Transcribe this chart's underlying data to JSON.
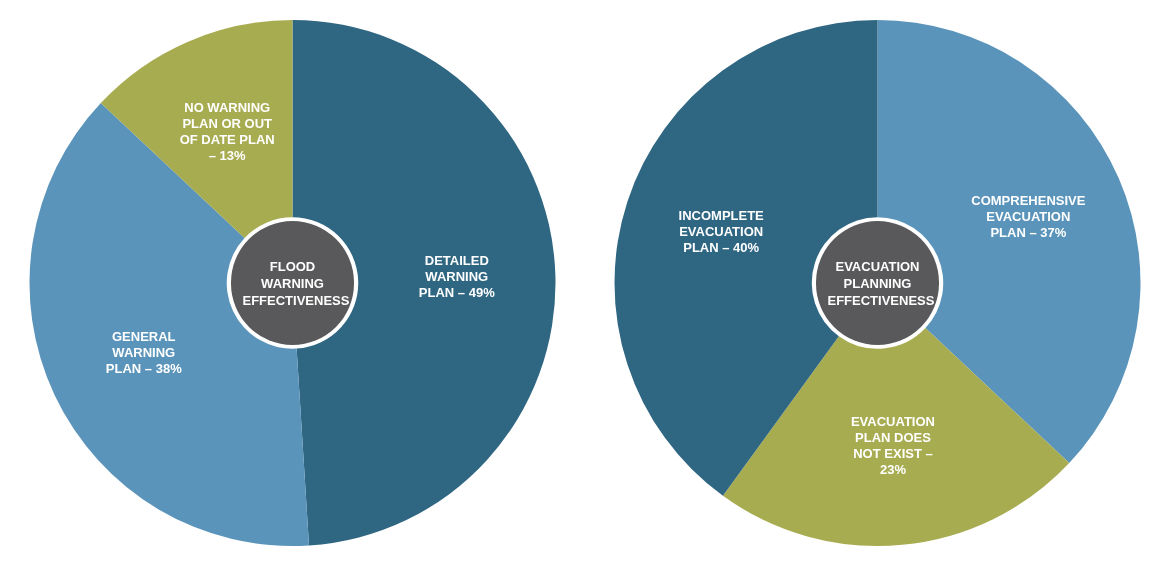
{
  "chart_data": [
    {
      "type": "donut",
      "title": "FLOOD WARNING EFFECTIVENESS",
      "categories": [
        "DETAILED WARNING PLAN – 49%",
        "GENERAL WARNING PLAN – 38%",
        "NO WARNING PLAN OR OUT OF DATE PLAN – 13%"
      ],
      "values": [
        49,
        38,
        13
      ],
      "colors": [
        "#2f6682",
        "#5b94ba",
        "#a8ac50"
      ],
      "legend": false
    },
    {
      "type": "donut",
      "title": "EVACUATION PLANNING EFFECTIVENESS",
      "categories": [
        "COMPREHENSIVE EVACUATION PLAN – 37%",
        "EVACUATION PLAN DOES NOT EXIST – 23%",
        "INCOMPLETE EVACUATION PLAN – 40%"
      ],
      "values": [
        37,
        23,
        40
      ],
      "colors": [
        "#5b94ba",
        "#a8ac50",
        "#2f6682"
      ],
      "legend": false
    }
  ]
}
